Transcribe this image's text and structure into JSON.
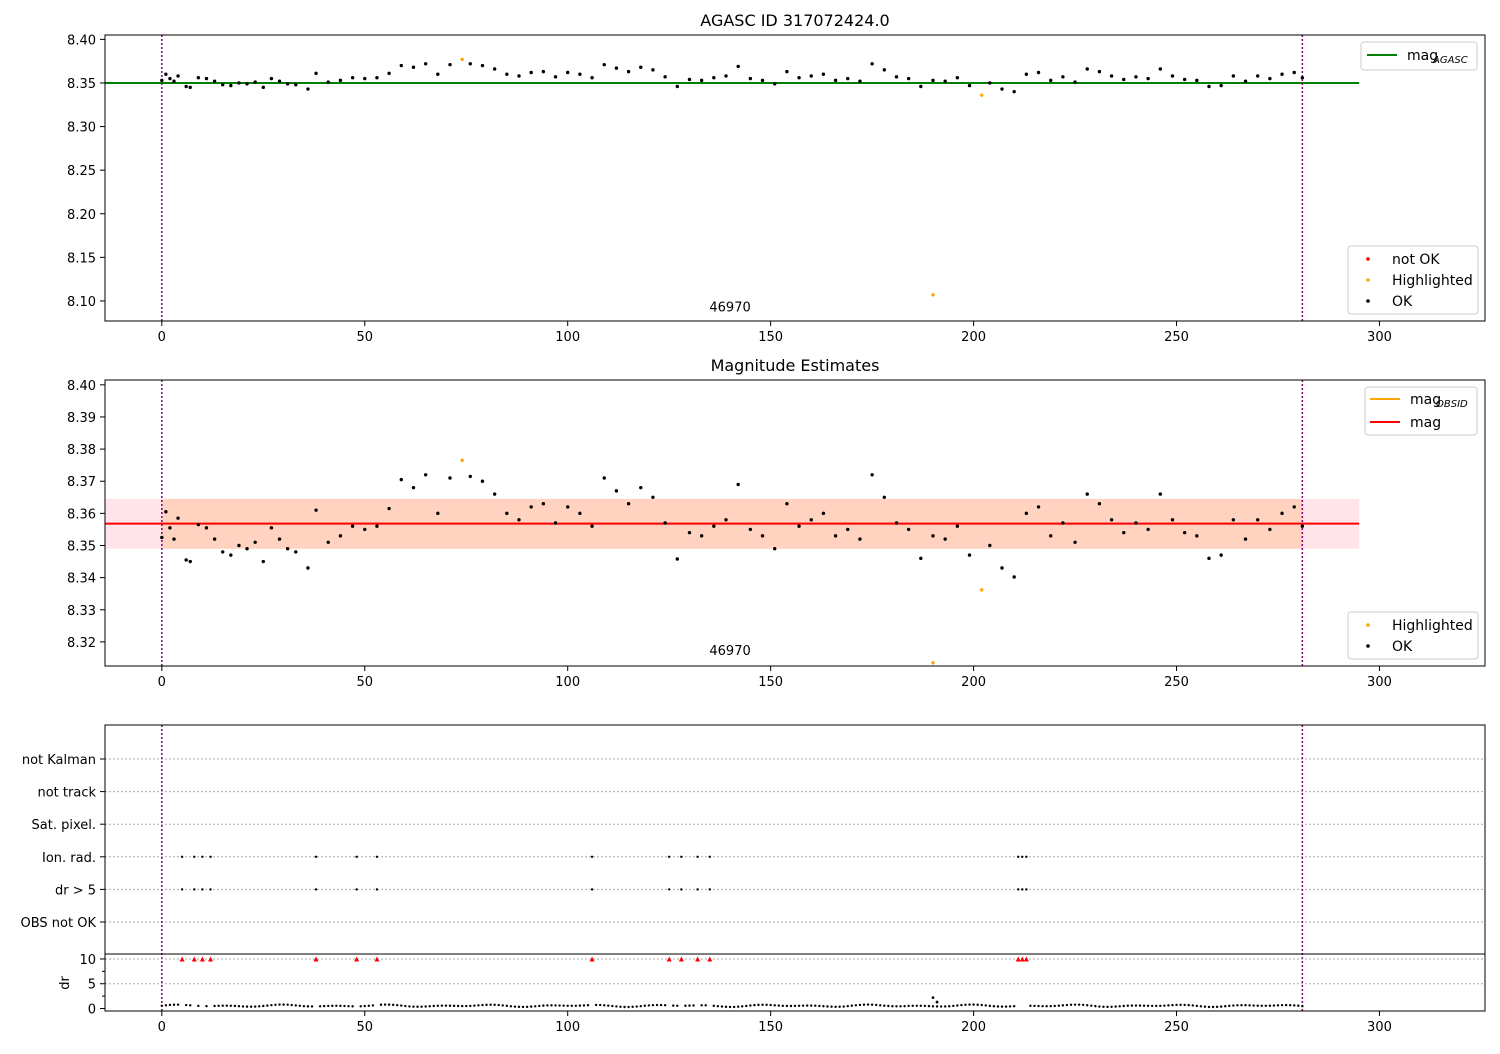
{
  "chart_data": [
    {
      "type": "scatter",
      "title": "AGASC ID 317072424.0",
      "xlim": [
        -14,
        326
      ],
      "ylim": [
        8.077,
        8.405
      ],
      "xticks": [
        0,
        50,
        100,
        150,
        200,
        250,
        300
      ],
      "yticks": [
        "8.10",
        "8.15",
        "8.20",
        "8.25",
        "8.30",
        "8.35",
        "8.40"
      ],
      "annotation": {
        "text": "46970",
        "x": 140,
        "y": 8.088
      },
      "vlines": [
        0,
        281
      ],
      "hline": {
        "y": 8.35,
        "x0": -14,
        "x1": 295,
        "color": "#008000"
      },
      "legend_lines": [
        {
          "label": "mag",
          "sub": "AGASC",
          "color": "#008000"
        }
      ],
      "legend_points": [
        {
          "label": "not OK",
          "color": "#ff0000"
        },
        {
          "label": "Highlighted",
          "color": "#ffa500"
        },
        {
          "label": "OK",
          "color": "#000000"
        }
      ],
      "series": [
        {
          "name": "Highlighted",
          "color": "#ffa500",
          "x": [
            74,
            190,
            202
          ],
          "y": [
            8.377,
            8.107,
            8.336
          ]
        },
        {
          "name": "OK",
          "color": "#000000",
          "x": [
            0,
            1,
            2,
            3,
            4,
            6,
            7,
            9,
            11,
            13,
            15,
            17,
            19,
            21,
            23,
            25,
            27,
            29,
            31,
            33,
            36,
            38,
            41,
            44,
            47,
            50,
            53,
            56,
            59,
            62,
            65,
            68,
            71,
            76,
            79,
            82,
            85,
            88,
            91,
            94,
            97,
            100,
            103,
            106,
            109,
            112,
            115,
            118,
            121,
            124,
            127,
            130,
            133,
            136,
            139,
            142,
            145,
            148,
            151,
            154,
            157,
            160,
            163,
            166,
            169,
            172,
            175,
            178,
            181,
            184,
            187,
            190,
            193,
            196,
            199,
            204,
            207,
            210,
            213,
            216,
            219,
            222,
            225,
            228,
            231,
            234,
            237,
            240,
            243,
            246,
            249,
            252,
            255,
            258,
            261,
            264,
            267,
            270,
            273,
            276,
            279,
            281
          ],
          "y": [
            8.353,
            8.36,
            8.355,
            8.352,
            8.358,
            8.346,
            8.345,
            8.356,
            8.355,
            8.352,
            8.348,
            8.347,
            8.35,
            8.349,
            8.351,
            8.345,
            8.355,
            8.352,
            8.349,
            8.348,
            8.343,
            8.361,
            8.351,
            8.353,
            8.356,
            8.355,
            8.356,
            8.361,
            8.37,
            8.368,
            8.372,
            8.36,
            8.371,
            8.372,
            8.37,
            8.366,
            8.36,
            8.358,
            8.362,
            8.363,
            8.357,
            8.362,
            8.36,
            8.356,
            8.371,
            8.367,
            8.363,
            8.368,
            8.365,
            8.357,
            8.346,
            8.354,
            8.353,
            8.356,
            8.358,
            8.369,
            8.355,
            8.353,
            8.349,
            8.363,
            8.356,
            8.358,
            8.36,
            8.353,
            8.355,
            8.352,
            8.372,
            8.365,
            8.357,
            8.355,
            8.346,
            8.353,
            8.352,
            8.356,
            8.347,
            8.35,
            8.343,
            8.34,
            8.36,
            8.362,
            8.353,
            8.357,
            8.351,
            8.366,
            8.363,
            8.358,
            8.354,
            8.357,
            8.355,
            8.366,
            8.358,
            8.354,
            8.353,
            8.346,
            8.347,
            8.358,
            8.352,
            8.358,
            8.355,
            8.36,
            8.362,
            8.356
          ]
        }
      ]
    },
    {
      "type": "scatter",
      "title": "Magnitude Estimates",
      "xlim": [
        -14,
        326
      ],
      "ylim": [
        8.3125,
        8.4015
      ],
      "xticks": [
        0,
        50,
        100,
        150,
        200,
        250,
        300
      ],
      "yticks": [
        "8.32",
        "8.33",
        "8.34",
        "8.35",
        "8.36",
        "8.37",
        "8.38",
        "8.39",
        "8.40"
      ],
      "annotation": {
        "text": "46970",
        "x": 140,
        "y": 8.316
      },
      "vlines": [
        0,
        281
      ],
      "band": {
        "y0": 8.349,
        "y1": 8.3645,
        "x0": -14,
        "x1": 295
      },
      "hline": {
        "y": 8.3568,
        "x0": -14,
        "x1": 295,
        "color": "#ff0000"
      },
      "legend_lines": [
        {
          "label": "mag",
          "sub": "OBSID",
          "color": "#ffa500"
        },
        {
          "label": "mag",
          "sub": "",
          "color": "#ff0000"
        }
      ],
      "legend_points": [
        {
          "label": "Highlighted",
          "color": "#ffa500"
        },
        {
          "label": "OK",
          "color": "#000000"
        }
      ],
      "series": [
        {
          "name": "Highlighted",
          "color": "#ffa500",
          "x": [
            74,
            190,
            202
          ],
          "y": [
            8.3765,
            8.3135,
            8.3362
          ]
        },
        {
          "name": "OK",
          "color": "#000000",
          "x": [
            0,
            1,
            2,
            3,
            4,
            6,
            7,
            9,
            11,
            13,
            15,
            17,
            19,
            21,
            23,
            25,
            27,
            29,
            31,
            33,
            36,
            38,
            41,
            44,
            47,
            50,
            53,
            56,
            59,
            62,
            65,
            68,
            71,
            76,
            79,
            82,
            85,
            88,
            91,
            94,
            97,
            100,
            103,
            106,
            109,
            112,
            115,
            118,
            121,
            124,
            127,
            130,
            133,
            136,
            139,
            142,
            145,
            148,
            151,
            154,
            157,
            160,
            163,
            166,
            169,
            172,
            175,
            178,
            181,
            184,
            187,
            190,
            193,
            196,
            199,
            204,
            207,
            210,
            213,
            216,
            219,
            222,
            225,
            228,
            231,
            234,
            237,
            240,
            243,
            246,
            249,
            252,
            255,
            258,
            261,
            264,
            267,
            270,
            273,
            276,
            279,
            281
          ],
          "y": [
            8.3525,
            8.3605,
            8.3555,
            8.352,
            8.3585,
            8.3455,
            8.345,
            8.3565,
            8.3555,
            8.352,
            8.348,
            8.347,
            8.35,
            8.349,
            8.351,
            8.345,
            8.3555,
            8.352,
            8.349,
            8.348,
            8.343,
            8.361,
            8.351,
            8.353,
            8.356,
            8.355,
            8.356,
            8.3615,
            8.3705,
            8.368,
            8.372,
            8.36,
            8.371,
            8.3715,
            8.37,
            8.366,
            8.36,
            8.358,
            8.362,
            8.363,
            8.357,
            8.362,
            8.36,
            8.356,
            8.371,
            8.367,
            8.363,
            8.368,
            8.365,
            8.357,
            8.3458,
            8.354,
            8.353,
            8.356,
            8.358,
            8.369,
            8.355,
            8.353,
            8.349,
            8.363,
            8.356,
            8.358,
            8.36,
            8.353,
            8.355,
            8.352,
            8.372,
            8.365,
            8.357,
            8.355,
            8.346,
            8.353,
            8.352,
            8.356,
            8.347,
            8.35,
            8.343,
            8.3402,
            8.36,
            8.362,
            8.353,
            8.357,
            8.351,
            8.366,
            8.363,
            8.358,
            8.354,
            8.357,
            8.355,
            8.366,
            8.358,
            8.354,
            8.353,
            8.346,
            8.347,
            8.358,
            8.352,
            8.358,
            8.355,
            8.36,
            8.362,
            8.356
          ]
        }
      ]
    },
    {
      "type": "scatter",
      "xlim": [
        -14,
        326
      ],
      "xticks": [
        0,
        50,
        100,
        150,
        200,
        250,
        300
      ],
      "vlines": [
        0,
        281
      ],
      "flags": {
        "categories": [
          "not Kalman",
          "not track",
          "Sat. pixel.",
          "Ion. rad.",
          "dr > 5",
          "OBS not OK"
        ],
        "flagged_x": [
          5,
          8,
          10,
          12,
          38,
          48,
          53,
          106,
          125,
          128,
          132,
          135,
          211,
          212,
          213
        ],
        "rows_with_points": [
          "Ion. rad.",
          "dr > 5"
        ]
      },
      "dr": {
        "ylabel": "dr",
        "ylim": [
          -0.5,
          11
        ],
        "yticks": [
          0,
          5,
          10
        ],
        "flag_value": 10,
        "flag_color": "#ff0000",
        "spike": {
          "x": [
            190,
            191
          ],
          "y": [
            2.2,
            1.3
          ]
        },
        "baseline": [
          0.3,
          0.8
        ]
      }
    }
  ]
}
